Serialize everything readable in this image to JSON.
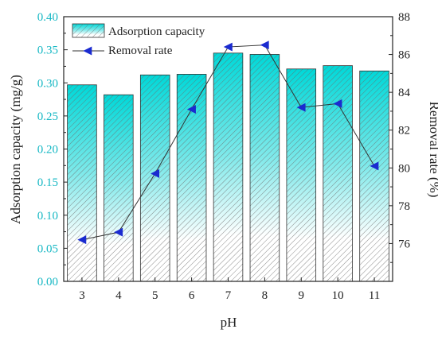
{
  "chart_data": {
    "type": "bar+line",
    "xlabel": "pH",
    "ylabel_left": "Adsorption capacity (mg/g)",
    "ylabel_right": "Removal rate (%)",
    "categories": [
      "3",
      "4",
      "5",
      "6",
      "7",
      "8",
      "9",
      "10",
      "11"
    ],
    "ylim_left": [
      0,
      0.4
    ],
    "yticks_left": [
      "0.00",
      "0.05",
      "0.10",
      "0.15",
      "0.20",
      "0.25",
      "0.30",
      "0.35",
      "0.40"
    ],
    "ylim_right": [
      74,
      88
    ],
    "yticks_right": [
      "76",
      "78",
      "80",
      "82",
      "84",
      "86",
      "88"
    ],
    "series": [
      {
        "name": "Adsorption capacity",
        "type": "bar",
        "axis": "left",
        "values": [
          0.297,
          0.282,
          0.312,
          0.313,
          0.345,
          0.343,
          0.321,
          0.326,
          0.318
        ]
      },
      {
        "name": "Removal rate",
        "type": "line",
        "axis": "right",
        "values": [
          76.2,
          76.6,
          79.7,
          83.1,
          86.4,
          86.5,
          83.2,
          83.4,
          80.1
        ]
      }
    ],
    "legend": "top-left",
    "grid": false,
    "colors": {
      "bar_top": "#00d8d8",
      "bar_hatch": "#808080",
      "line": "#333333",
      "marker": "#1a2bd0",
      "left_axis_text": "#17b8c4"
    }
  }
}
